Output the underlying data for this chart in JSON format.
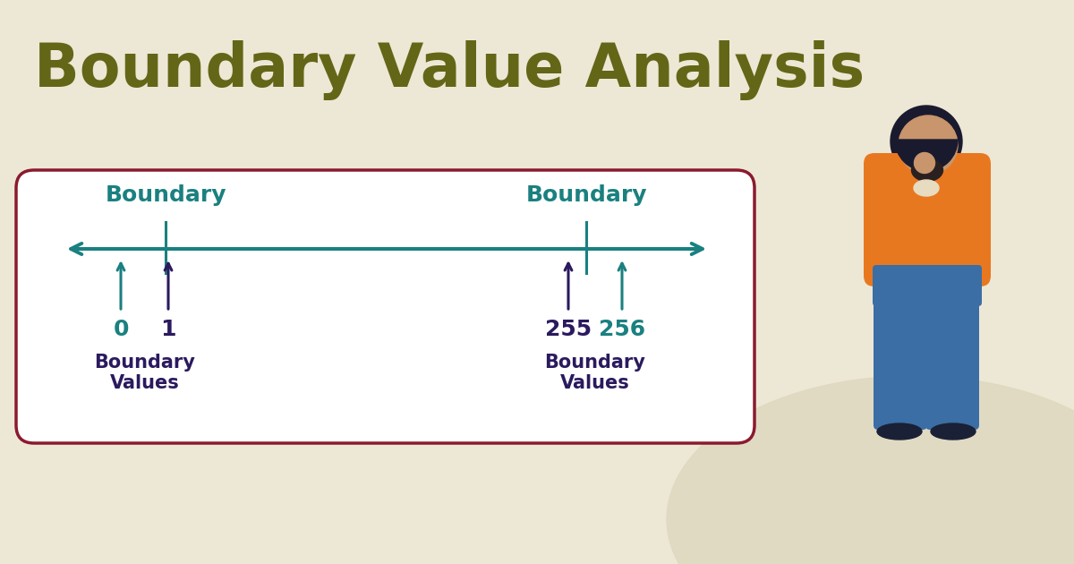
{
  "title": "Boundary Value Analysis",
  "title_color": "#636617",
  "title_fontsize": 48,
  "bg_color": "#ede8d5",
  "box_bg": "#ffffff",
  "box_border_color": "#8b1a2e",
  "axis_color": "#1a8080",
  "left_boundary_label": "Boundary",
  "right_boundary_label": "Boundary",
  "boundary_label_color": "#1a8080",
  "boundary_label_fontsize": 18,
  "val0_label": "0",
  "val1_label": "1",
  "val255_label": "255",
  "val256_label": "256",
  "val0_color": "#1a8080",
  "val1_color": "#2b1a5e",
  "val255_color": "#2b1a5e",
  "val256_color": "#1a8080",
  "bv_label": "Boundary\nValues",
  "bv_label_color": "#2b1a5e",
  "bv_fontsize": 15,
  "number_fontsize": 18,
  "blob_color": "#e0d8c0"
}
